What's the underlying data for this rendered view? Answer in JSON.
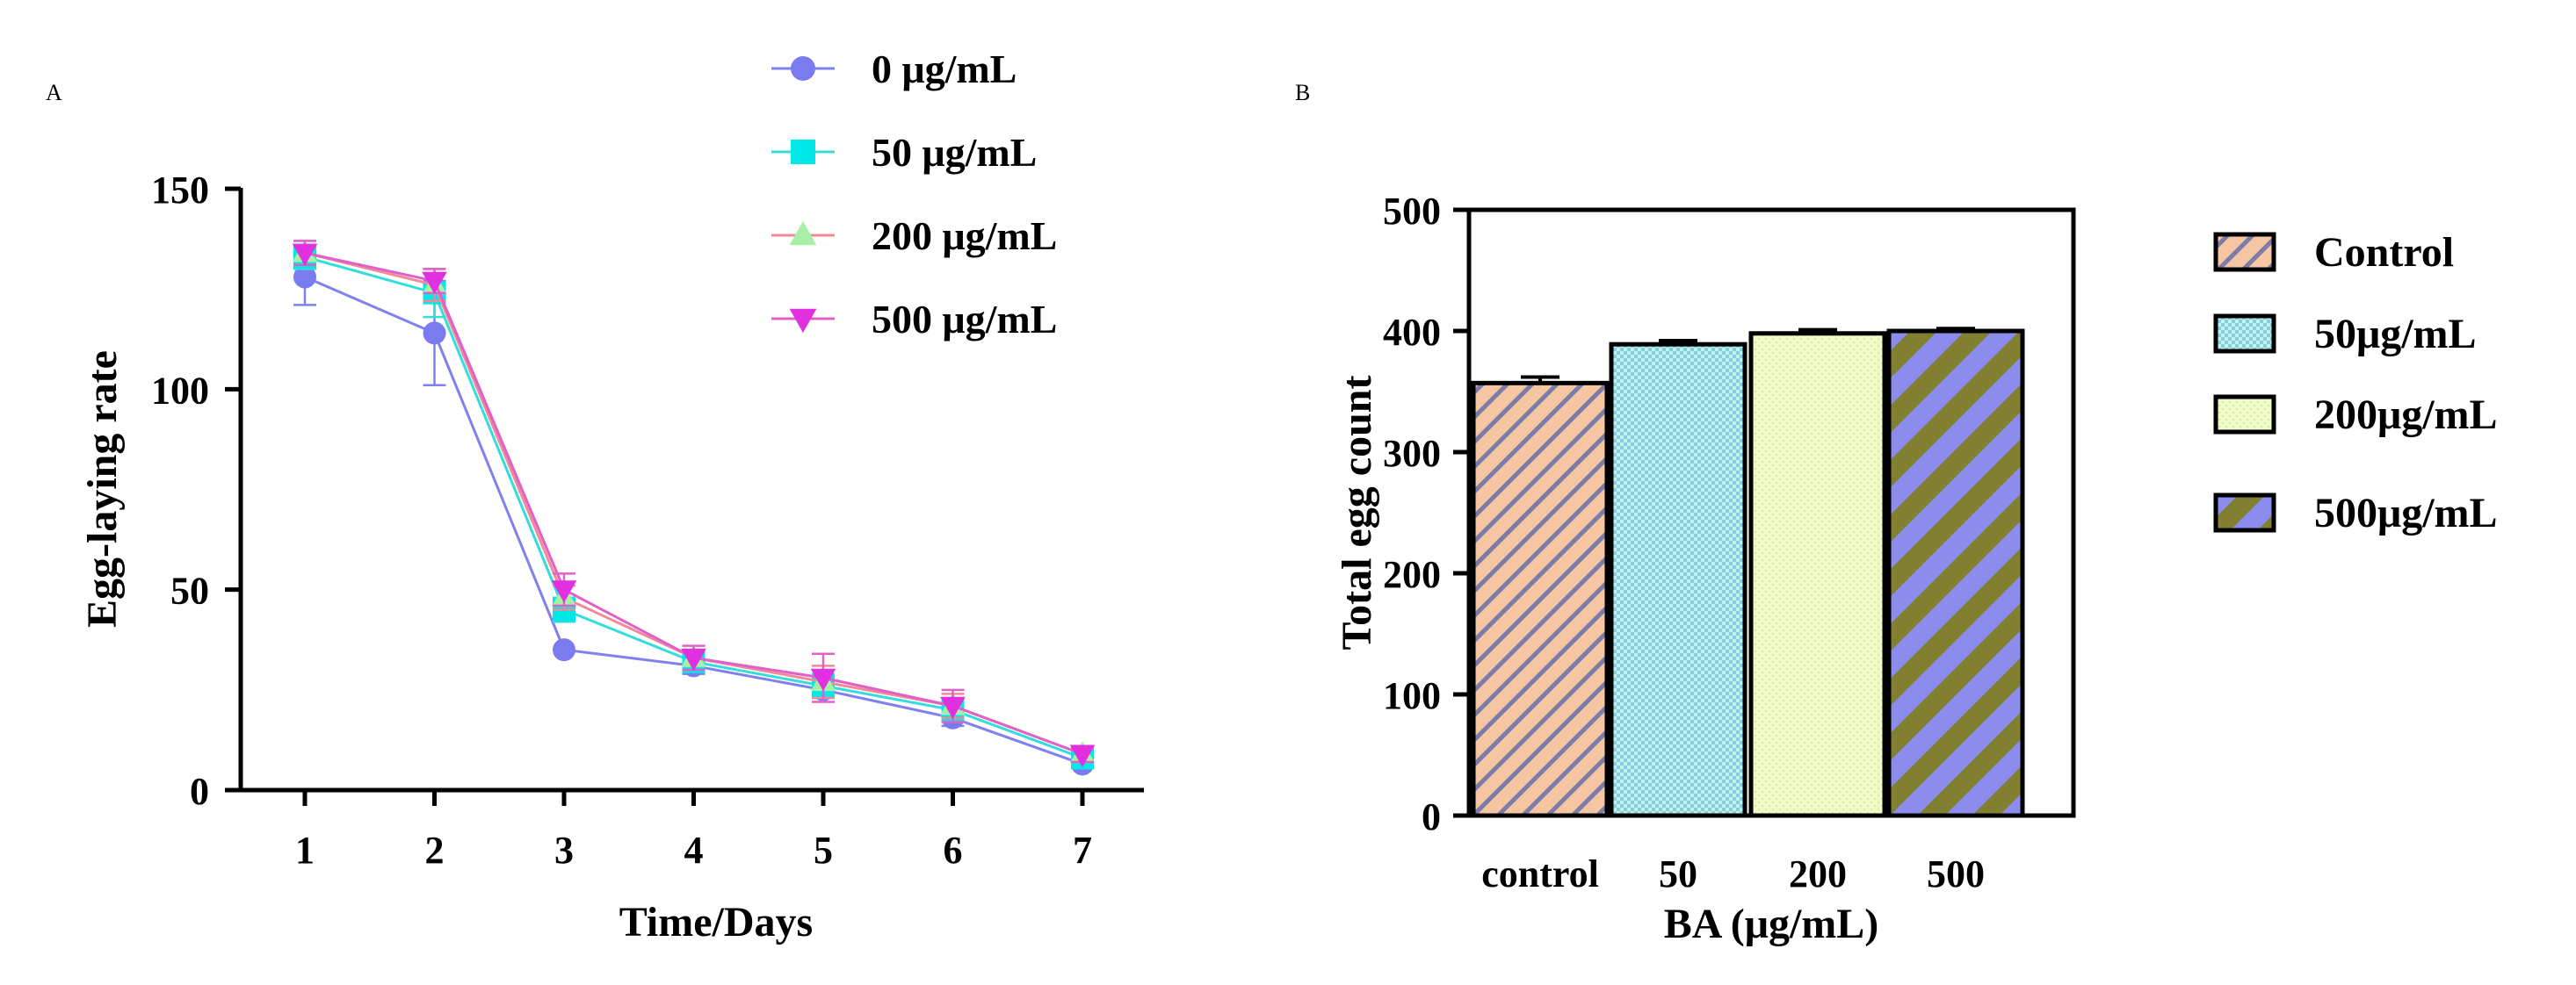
{
  "panel_labels": {
    "a": "A",
    "b": "B"
  },
  "colors": {
    "series": [
      "#6E6EE6",
      "#00E5E5",
      "#F07C8A",
      "#E040E0"
    ],
    "line": [
      "#8080EE",
      "#33DDDD",
      "#F08A98",
      "#E060C8"
    ],
    "markers": [
      "#7B7BF0",
      "#00E8E8",
      "#A8F0A8",
      "#E030E0"
    ],
    "bars_bg": [
      "#F6C6A2",
      "#C4F0F0",
      "#F0FCC4",
      "#8C8CEC"
    ],
    "bars_fg": [
      "#7C7CA8",
      "#7AC8D8",
      "#DAF0A8",
      "#808030"
    ]
  },
  "chart_data": [
    {
      "type": "line",
      "panel": "A",
      "title": "",
      "xlabel": "Time/Days",
      "ylabel": "Egg-laying rate",
      "x": [
        1,
        2,
        3,
        4,
        5,
        6,
        7
      ],
      "xlim": [
        0.5,
        7.5
      ],
      "ylim": [
        0,
        150
      ],
      "yticks": [
        0,
        50,
        100,
        150
      ],
      "grid": false,
      "legend_position": "top-right",
      "series": [
        {
          "name": "0 μg/mL",
          "marker": "circle",
          "values": [
            128,
            114,
            35,
            31,
            25,
            18,
            6.5
          ],
          "errors": [
            7,
            13,
            0,
            2,
            2,
            2,
            1
          ]
        },
        {
          "name": "50 μg/mL",
          "marker": "square",
          "values": [
            133,
            124,
            45,
            32,
            26,
            20,
            8
          ],
          "errors": [
            3,
            6,
            3,
            2,
            3,
            2,
            1
          ]
        },
        {
          "name": "200 μg/mL",
          "marker": "triangle-up",
          "values": [
            134,
            126,
            48,
            33,
            27,
            21,
            9
          ],
          "errors": [
            3,
            4,
            3,
            2,
            4,
            3,
            1.5
          ]
        },
        {
          "name": "500 μg/mL",
          "marker": "triangle-down",
          "values": [
            134,
            127,
            50,
            33,
            28,
            21,
            9
          ],
          "errors": [
            3,
            3,
            4,
            3,
            6,
            4,
            2
          ]
        }
      ]
    },
    {
      "type": "bar",
      "panel": "B",
      "title": "",
      "xlabel": "BA (μg/mL)",
      "ylabel": "Total egg count",
      "categories": [
        "control",
        "50",
        "200",
        "500"
      ],
      "values": [
        357,
        389,
        398,
        400
      ],
      "errors": [
        5,
        3,
        3,
        2
      ],
      "ylim": [
        0,
        500
      ],
      "yticks": [
        0,
        100,
        200,
        300,
        400,
        500
      ],
      "grid": false,
      "legend_position": "right",
      "legend": [
        "Control",
        "50μg/mL",
        "200μg/mL",
        "500μg/mL"
      ]
    }
  ]
}
